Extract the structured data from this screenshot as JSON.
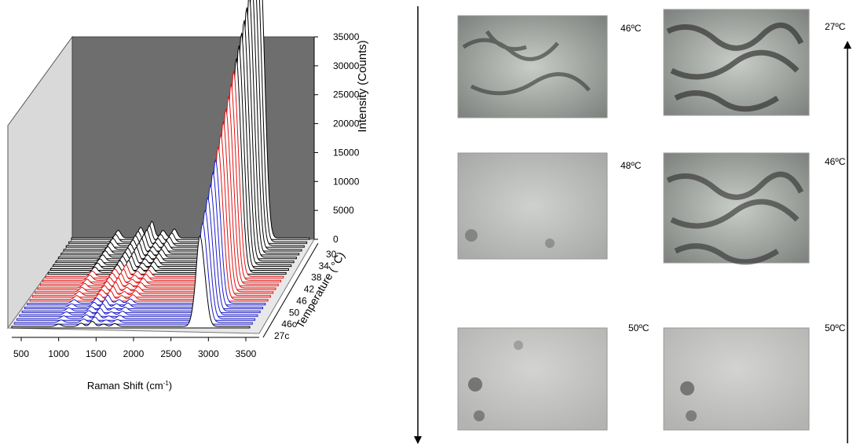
{
  "plot": {
    "y_label": "Intensity (Counts)",
    "y_ticks": [
      "35000",
      "30000",
      "25000",
      "20000",
      "15000",
      "10000",
      "5000",
      "0"
    ],
    "x_label": "Raman Shift (cm",
    "x_label_sup": "-1",
    "x_label_end": ")",
    "x_ticks": [
      "500",
      "1000",
      "1500",
      "2000",
      "2500",
      "3000",
      "3500"
    ],
    "z_label": "Temperature (",
    "z_label_unit": "°C)",
    "z_ticks": [
      "30",
      "34",
      "38",
      "42",
      "46",
      "50",
      "46c",
      "27c"
    ]
  },
  "images": [
    {
      "label": "46ºC"
    },
    {
      "label": "27ºC"
    },
    {
      "label": "48ºC"
    },
    {
      "label": "46ºC"
    },
    {
      "label": "50ºC"
    },
    {
      "label": "50ºC"
    }
  ]
}
